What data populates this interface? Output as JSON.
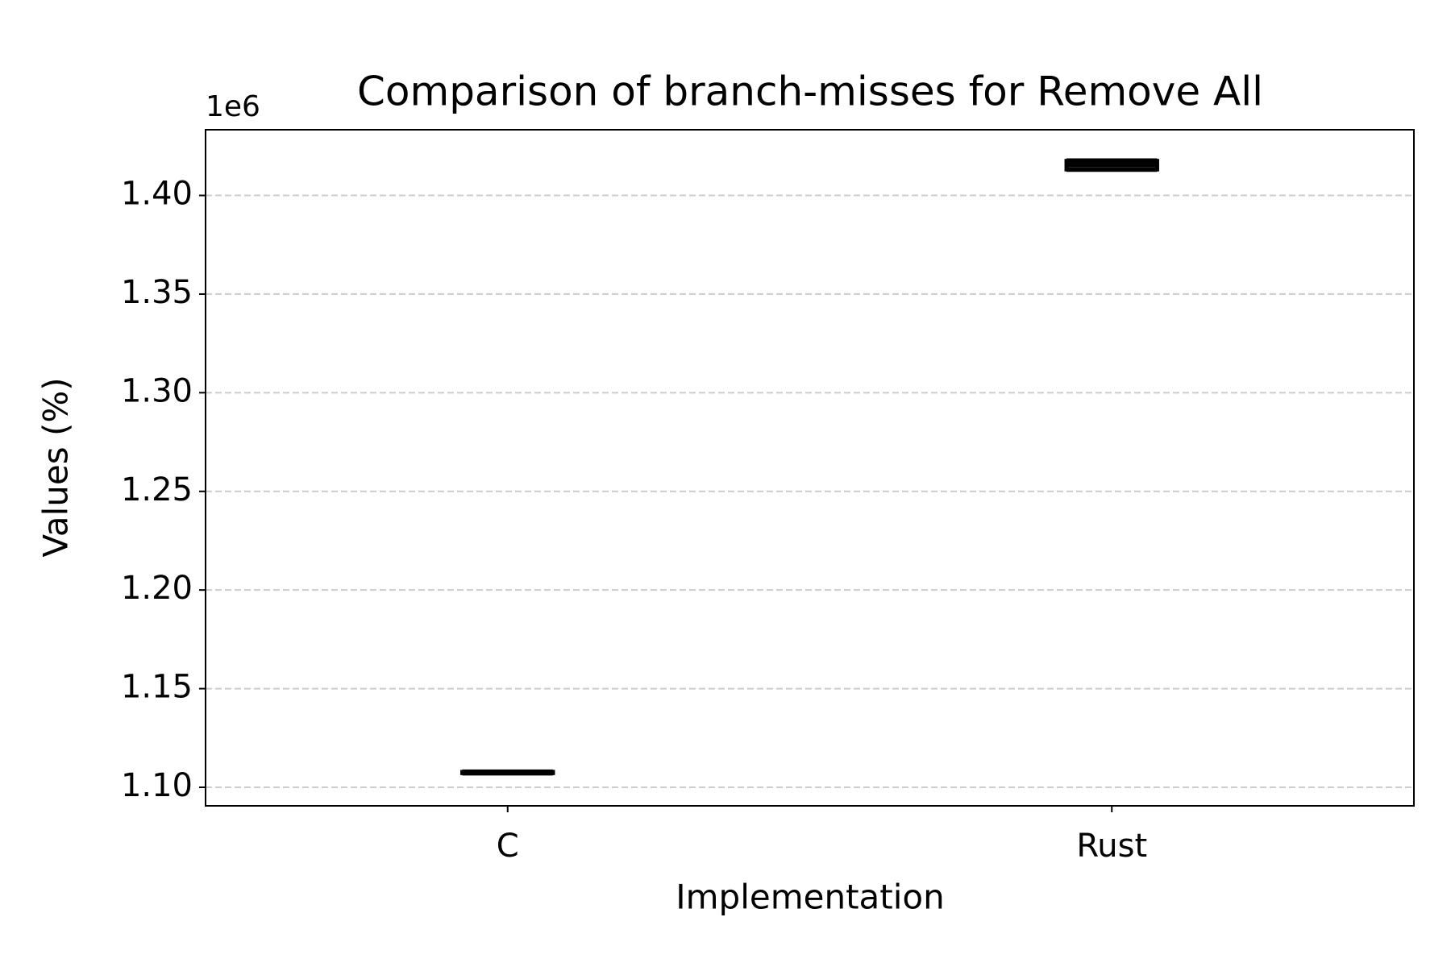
{
  "chart_data": {
    "type": "box",
    "title": "Comparison of branch-misses for Remove All",
    "x_label": "Implementation",
    "y_label": "Values (%)",
    "y_offset_label": "1e6",
    "categories": [
      "C",
      "Rust"
    ],
    "boxes": [
      {
        "whislo": 1107000,
        "q1": 1107200,
        "med": 1107500,
        "q3": 1107800,
        "whishi": 1108000
      },
      {
        "whislo": 1413000,
        "q1": 1413200,
        "med": 1415500,
        "q3": 1417500,
        "whishi": 1417800
      }
    ],
    "color": "#000000",
    "ylim": [
      1090600,
      1433300
    ],
    "yticks": [
      {
        "value": 1100000,
        "label": "1.10"
      },
      {
        "value": 1150000,
        "label": "1.15"
      },
      {
        "value": 1200000,
        "label": "1.20"
      },
      {
        "value": 1250000,
        "label": "1.25"
      },
      {
        "value": 1300000,
        "label": "1.30"
      },
      {
        "value": 1350000,
        "label": "1.35"
      },
      {
        "value": 1400000,
        "label": "1.40"
      }
    ],
    "grid": true
  }
}
